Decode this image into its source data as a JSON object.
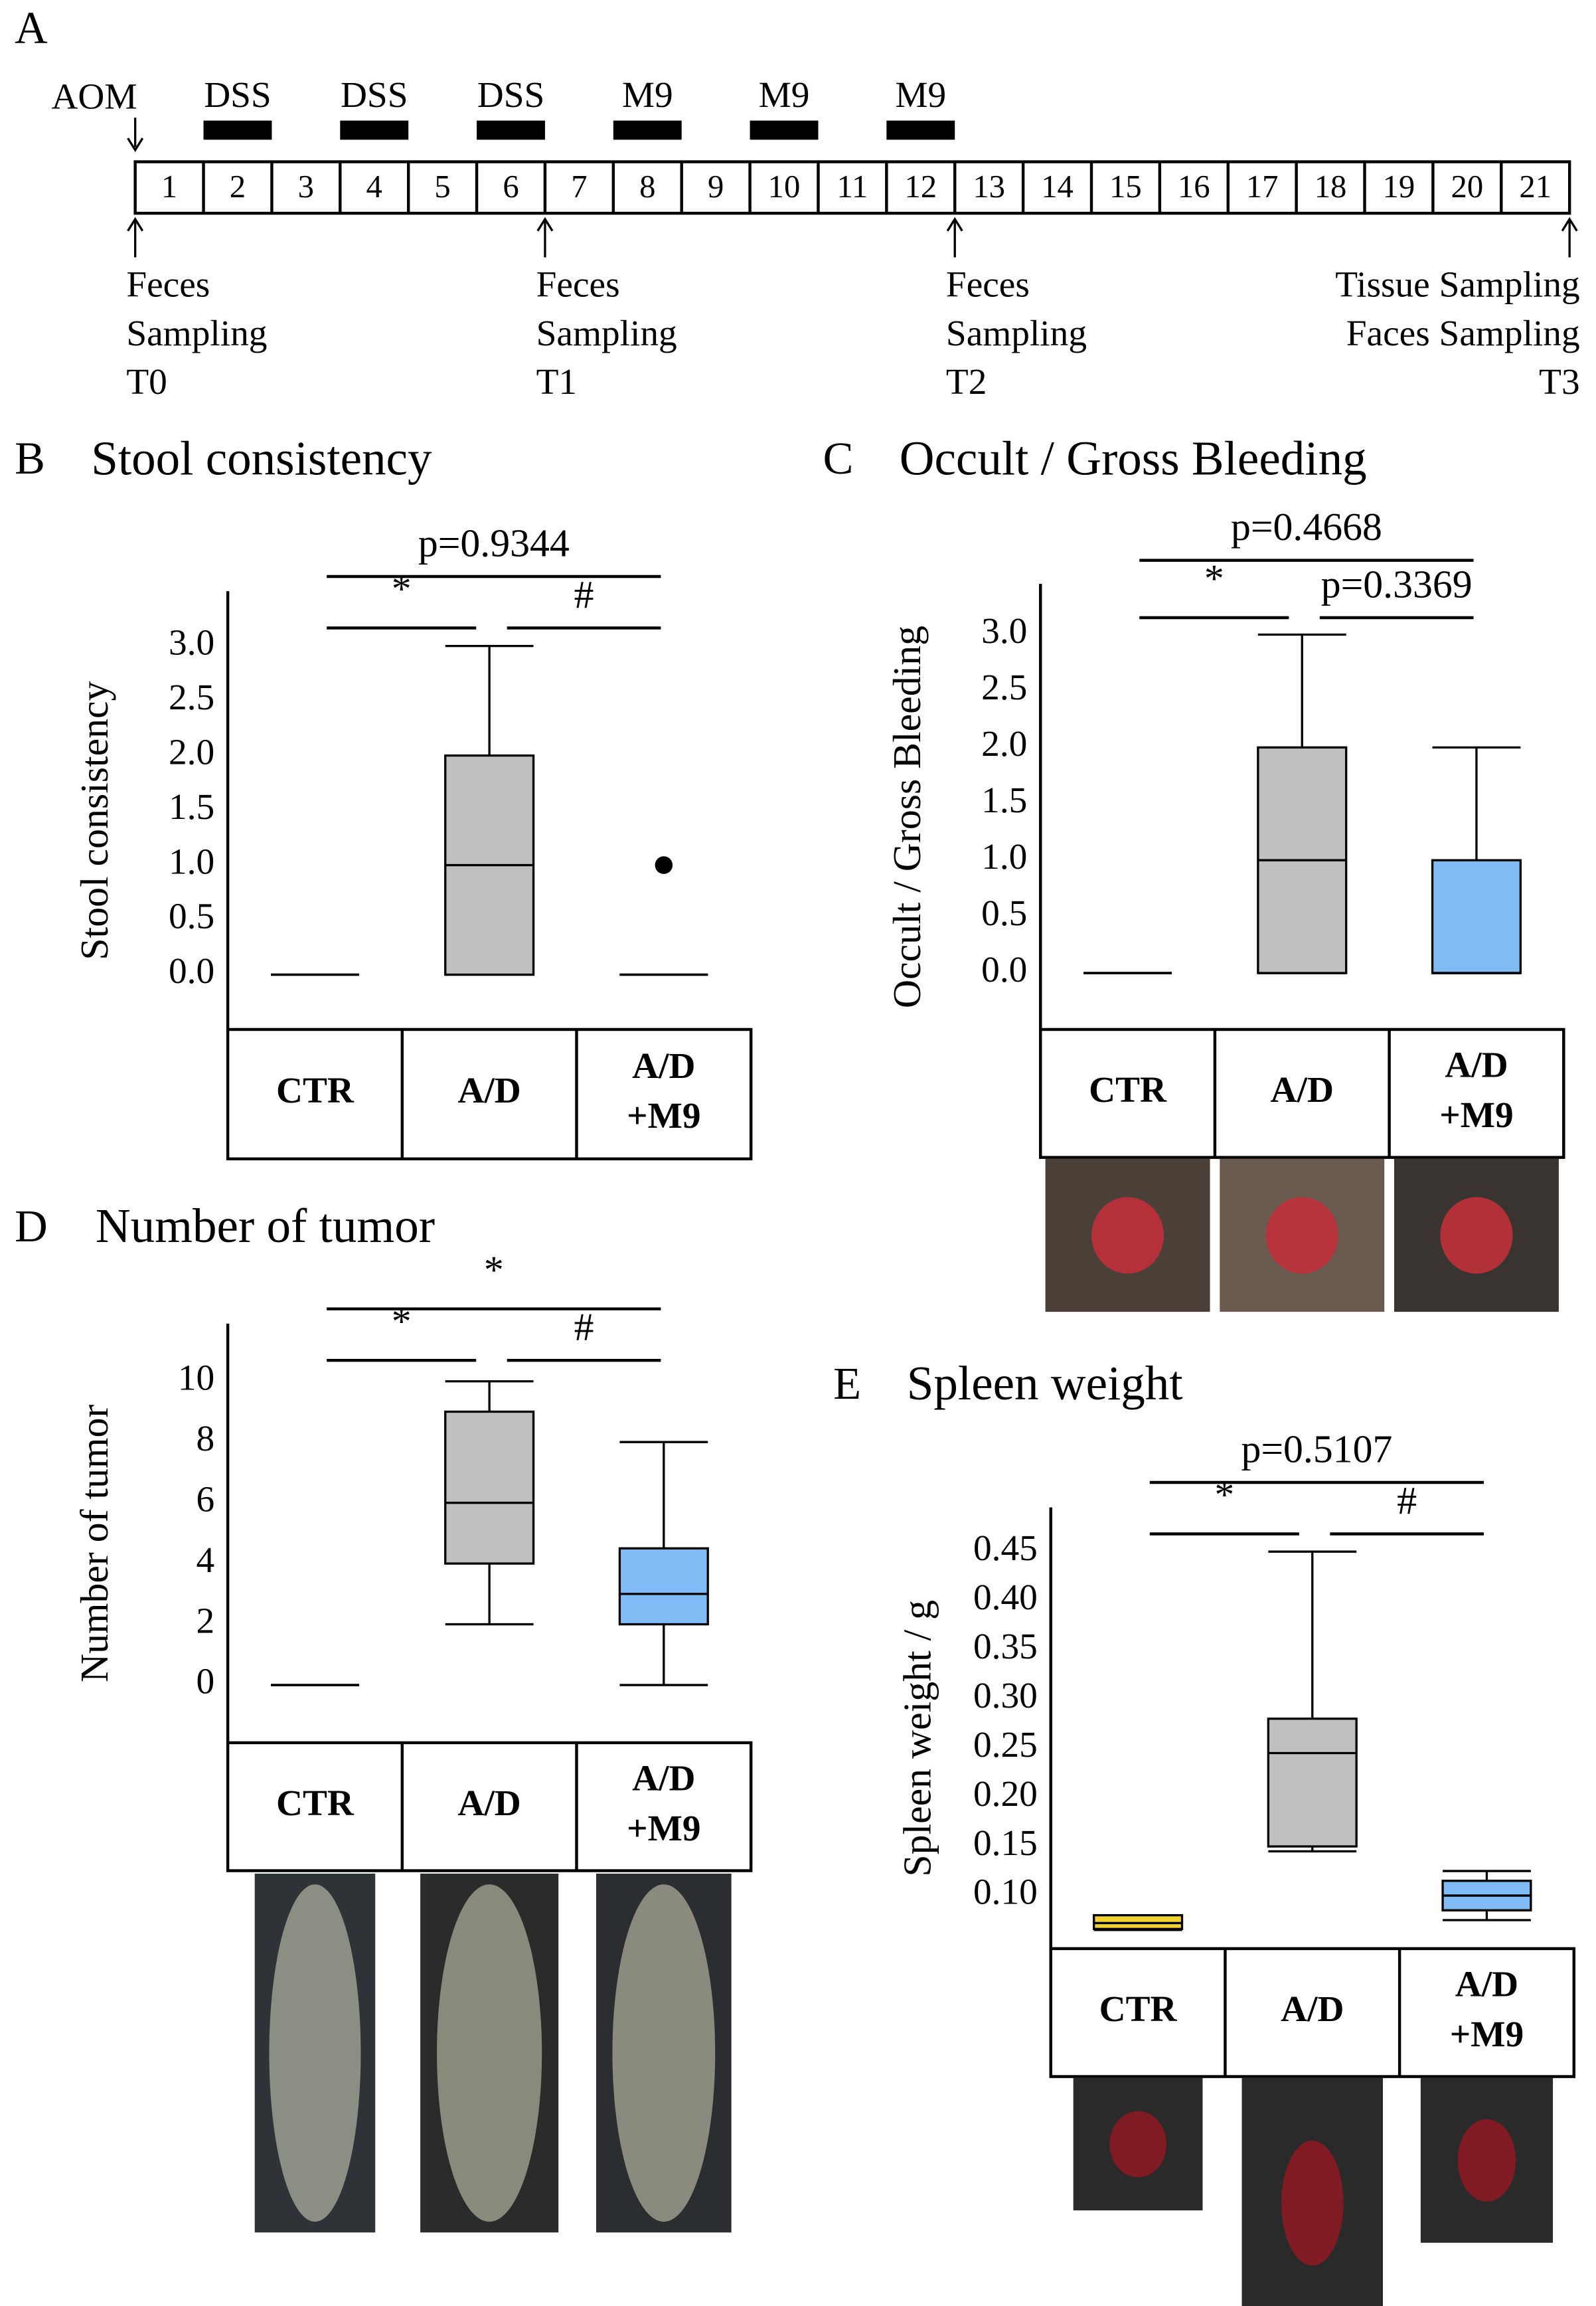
{
  "timeline": {
    "panel": "A",
    "start": "AOM",
    "days": [
      "1",
      "2",
      "3",
      "4",
      "5",
      "6",
      "7",
      "8",
      "9",
      "10",
      "11",
      "12",
      "13",
      "14",
      "15",
      "16",
      "17",
      "18",
      "19",
      "20",
      "21"
    ],
    "treatments": [
      "DSS",
      "DSS",
      "DSS",
      "M9",
      "M9",
      "M9"
    ],
    "samplings": [
      [
        "Feces",
        "Sampling",
        "T0"
      ],
      [
        "Feces",
        "Sampling",
        "T1"
      ],
      [
        "Feces",
        "Sampling",
        "T2"
      ],
      [
        "Tissue Sampling",
        "Faces Sampling",
        "T3"
      ]
    ]
  },
  "chart_data": [
    {
      "type": "box",
      "panel": "B",
      "title": "Stool consistency",
      "y_label": "Stool consistency",
      "categories": [
        "CTR",
        "A/D",
        "A/D +M9"
      ],
      "colors": [
        "#c0c0c0",
        "#c0c0c0",
        "#c0c0c0"
      ],
      "boxes": [
        {
          "min": 0,
          "q1": 0,
          "median": 0,
          "q3": 0,
          "max": 0
        },
        {
          "min": 0,
          "q1": 0,
          "median": 1,
          "q3": 2,
          "max": 3
        },
        {
          "min": 0,
          "q1": 0,
          "median": 0,
          "q3": 0,
          "max": 0,
          "outliers": [
            1
          ]
        }
      ],
      "ylim": [
        -0.5,
        3.5
      ],
      "yticks": [
        {
          "value": 0,
          "label": "0.0"
        },
        0.5,
        {
          "value": 1,
          "label": "1.0"
        },
        1.5,
        {
          "value": 2,
          "label": "2.0"
        },
        2.5,
        {
          "value": 3,
          "label": "3.0"
        }
      ],
      "annotations": [
        "p=0.9344",
        "*",
        "#"
      ]
    },
    {
      "type": "box",
      "panel": "C",
      "title": "Occult / Gross Bleeding",
      "y_label": "Occult / Gross Bleeding",
      "categories": [
        "CTR",
        "A/D",
        "A/D +M9"
      ],
      "colors": [
        "#c0c0c0",
        "#c0c0c0",
        "#80bbf5"
      ],
      "boxes": [
        {
          "min": 0,
          "q1": 0,
          "median": 0,
          "q3": 0,
          "max": 0
        },
        {
          "min": 0,
          "q1": 0,
          "median": 1,
          "q3": 2,
          "max": 3
        },
        {
          "min": 0,
          "q1": 0,
          "median": 0,
          "q3": 1,
          "max": 2
        }
      ],
      "ylim": [
        -0.5,
        3.45
      ],
      "yticks": [
        {
          "value": 0,
          "label": "0.0"
        },
        0.5,
        {
          "value": 1,
          "label": "1.0"
        },
        1.5,
        {
          "value": 2,
          "label": "2.0"
        },
        2.5,
        {
          "value": 3,
          "label": "3.0"
        }
      ],
      "annotations": [
        "p=0.4668",
        "*",
        "p=0.3369"
      ]
    },
    {
      "type": "box",
      "panel": "D",
      "title": "Number of tumor",
      "y_label": "Number of tumor",
      "categories": [
        "CTR",
        "A/D",
        "A/D +M9"
      ],
      "colors": [
        "#c0c0c0",
        "#c0c0c0",
        "#80bbf5"
      ],
      "boxes": [
        {
          "min": 0,
          "q1": 0,
          "median": 0,
          "q3": 0,
          "max": 0
        },
        {
          "min": 2,
          "q1": 4,
          "median": 6,
          "q3": 9,
          "max": 10
        },
        {
          "min": 0,
          "q1": 2,
          "median": 3,
          "q3": 4.5,
          "max": 8
        }
      ],
      "ylim": [
        -1.9,
        11.9
      ],
      "yticks": [
        0,
        2,
        4,
        6,
        8,
        10
      ],
      "annotations": [
        "*",
        "*",
        "#"
      ]
    },
    {
      "type": "box",
      "panel": "E",
      "title": "Spleen weight",
      "y_label": "Spleen weight / g",
      "categories": [
        "CTR",
        "A/D",
        "A/D +M9"
      ],
      "colors": [
        "#f2d22e",
        "#c0c0c0",
        "#80bbf5"
      ],
      "boxes": [
        {
          "min": 0.065,
          "q1": 0.066,
          "median": 0.072,
          "q3": 0.08,
          "max": 0.08
        },
        {
          "min": 0.145,
          "q1": 0.15,
          "median": 0.245,
          "q3": 0.28,
          "max": 0.45
        },
        {
          "min": 0.075,
          "q1": 0.085,
          "median": 0.1,
          "q3": 0.115,
          "max": 0.125
        }
      ],
      "ylim": [
        0.046,
        0.495
      ],
      "yticks": [
        {
          "value": 0.1,
          "label": "0.10"
        },
        0.15,
        {
          "value": 0.2,
          "label": "0.20"
        },
        0.25,
        {
          "value": 0.3,
          "label": "0.30"
        },
        0.35,
        {
          "value": 0.4,
          "label": "0.40"
        },
        0.45
      ],
      "annotations": [
        "p=0.5107",
        "*",
        "#"
      ]
    }
  ]
}
